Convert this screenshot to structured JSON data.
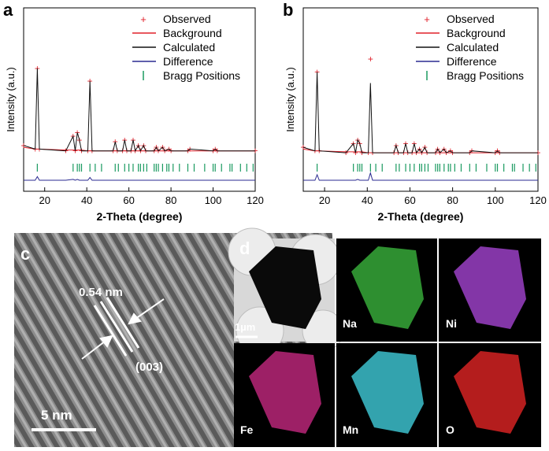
{
  "chart_data": [
    {
      "type": "line",
      "label": "a",
      "xlabel": "2-Theta (degree)",
      "ylabel": "Intensity (a.u.)",
      "xlim": [
        10,
        120
      ],
      "xticks": [
        20,
        40,
        60,
        80,
        100,
        120
      ],
      "ylim": [
        0,
        100
      ],
      "x": [
        10,
        15.5,
        16.5,
        17.5,
        30,
        33.5,
        34.5,
        35.5,
        36.5,
        37.5,
        40.5,
        41.5,
        42.5,
        52.5,
        53.5,
        54.5,
        57,
        58,
        59,
        61,
        62,
        63,
        64.5,
        65.5,
        67,
        68,
        72,
        73,
        74,
        76,
        77,
        79,
        80,
        88,
        89,
        100,
        101,
        102,
        120
      ],
      "series": [
        {
          "name": "Observed",
          "style": "markers",
          "color": "#e0202a",
          "values": [
            25,
            23,
            67,
            23,
            22,
            30,
            22,
            32,
            28,
            22,
            22,
            60,
            22,
            22,
            27,
            22,
            22,
            28,
            22,
            22,
            28,
            22,
            25,
            22,
            25,
            22,
            22,
            24,
            22,
            24,
            22,
            23,
            22,
            22,
            23,
            22,
            23,
            22,
            22
          ]
        },
        {
          "name": "Background",
          "style": "line",
          "color": "#e0202a",
          "values": [
            24,
            23,
            23,
            23,
            22.5,
            22.5,
            22.5,
            22.5,
            22.5,
            22.5,
            22,
            22,
            22,
            22,
            22,
            22,
            22,
            22,
            22,
            22,
            22,
            22,
            22,
            22,
            22,
            22,
            22,
            22,
            22,
            22,
            22,
            22,
            22,
            22,
            22,
            22,
            22,
            22,
            22
          ]
        },
        {
          "name": "Calculated",
          "style": "line",
          "color": "#111111",
          "values": [
            25,
            23,
            67,
            23,
            22,
            30,
            22,
            32,
            28,
            22,
            22,
            60,
            22,
            22,
            27,
            22,
            22,
            28,
            22,
            22,
            28,
            22,
            25,
            22,
            25,
            22,
            22,
            24,
            22,
            24,
            22,
            23,
            22,
            22,
            23,
            22,
            23,
            22,
            22
          ]
        },
        {
          "name": "Difference",
          "style": "line",
          "color": "#2a2a90",
          "values": [
            6,
            6,
            8,
            6,
            6,
            6.5,
            6,
            6.5,
            6,
            6,
            6,
            7.5,
            6,
            6,
            6,
            6,
            6,
            6,
            6,
            6,
            6,
            6,
            6,
            6,
            6,
            6,
            6,
            6,
            6,
            6,
            6,
            6,
            6,
            6,
            6,
            6,
            6,
            6,
            6
          ]
        },
        {
          "name": "Bragg Positions",
          "style": "ticks",
          "color": "#1a9a60",
          "x": [
            16.5,
            33.5,
            35.5,
            36.5,
            37.5,
            41.5,
            44,
            47,
            53.5,
            55,
            58,
            60,
            62,
            64.5,
            65.5,
            67,
            68.5,
            72,
            73,
            74,
            76,
            78,
            79,
            81,
            84,
            88,
            91,
            96,
            100,
            101,
            104,
            108,
            109,
            113,
            116,
            119
          ]
        }
      ]
    },
    {
      "type": "line",
      "label": "b",
      "xlabel": "2-Theta (degree)",
      "ylabel": "Intensity (a.u.)",
      "xlim": [
        10,
        120
      ],
      "xticks": [
        20,
        40,
        60,
        80,
        100,
        120
      ],
      "ylim": [
        0,
        100
      ],
      "x": [
        10,
        15.5,
        16.5,
        17.5,
        30,
        33.5,
        34.5,
        35.5,
        36.5,
        37.5,
        40.5,
        41.5,
        42.5,
        52.5,
        53.5,
        54.5,
        57,
        58,
        59,
        61,
        62,
        63,
        64.5,
        65.5,
        67,
        68,
        72,
        73,
        74,
        76,
        77,
        79,
        80,
        88,
        89,
        100,
        101,
        102,
        120
      ],
      "series": [
        {
          "name": "Observed",
          "style": "markers",
          "color": "#e0202a",
          "values": [
            24,
            22,
            65,
            22,
            21,
            26,
            21,
            28,
            26,
            21,
            21,
            72,
            21,
            21,
            25,
            21,
            21,
            26,
            21,
            21,
            26,
            21,
            23,
            21,
            24,
            21,
            21,
            23,
            21,
            23,
            21,
            22,
            21,
            21,
            22,
            21,
            22,
            21,
            21
          ]
        },
        {
          "name": "Background",
          "style": "line",
          "color": "#e0202a",
          "values": [
            23,
            22,
            22,
            22,
            21.5,
            21.5,
            21.5,
            21.5,
            21.5,
            21.5,
            21,
            21,
            21,
            21,
            21,
            21,
            21,
            21,
            21,
            21,
            21,
            21,
            21,
            21,
            21,
            21,
            21,
            21,
            21,
            21,
            21,
            21,
            21,
            21,
            21,
            21,
            21,
            21,
            21
          ]
        },
        {
          "name": "Calculated",
          "style": "line",
          "color": "#111111",
          "values": [
            24,
            22,
            65,
            22,
            21,
            26,
            21,
            28,
            26,
            21,
            21,
            59,
            21,
            21,
            25,
            21,
            21,
            26,
            21,
            21,
            26,
            21,
            23,
            21,
            24,
            21,
            21,
            23,
            21,
            23,
            21,
            22,
            21,
            21,
            22,
            21,
            22,
            21,
            21
          ]
        },
        {
          "name": "Difference",
          "style": "line",
          "color": "#2a2a90",
          "values": [
            6,
            6,
            9,
            6,
            6,
            6,
            6,
            6.5,
            6,
            6,
            6,
            10,
            6,
            6,
            6,
            6,
            6,
            6,
            6,
            6,
            6,
            6,
            6,
            6,
            6,
            6,
            6,
            6,
            6,
            6,
            6,
            6,
            6,
            6,
            6,
            6,
            6,
            6,
            6
          ]
        },
        {
          "name": "Bragg Positions",
          "style": "ticks",
          "color": "#1a9a60",
          "x": [
            16.5,
            33.5,
            35.5,
            36.5,
            37.5,
            41.5,
            44,
            47,
            53.5,
            55,
            58,
            60,
            62,
            64.5,
            65.5,
            67,
            68.5,
            72,
            73,
            74,
            76,
            78,
            79,
            81,
            84,
            88,
            91,
            96,
            100,
            101,
            104,
            108,
            109,
            113,
            116,
            119
          ]
        }
      ]
    }
  ],
  "panel_c": {
    "label": "c",
    "spacing": "0.54 nm",
    "plane": "(003)",
    "scale_bar": "5 nm"
  },
  "panel_d": {
    "label": "d",
    "scale_bar": "1µm",
    "elements": [
      "Na",
      "Ni",
      "Fe",
      "Mn",
      "O"
    ]
  }
}
